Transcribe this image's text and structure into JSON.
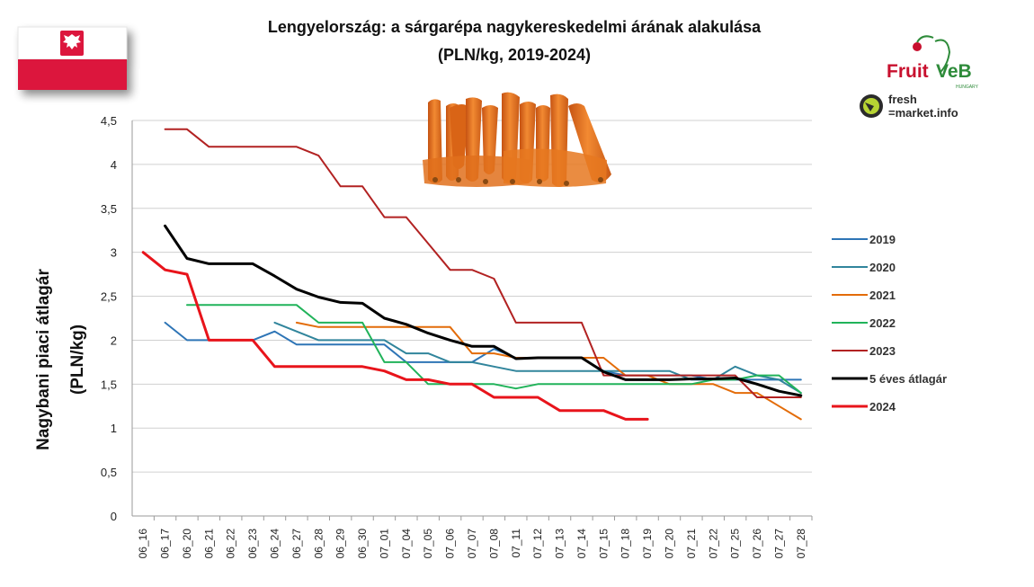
{
  "chart_data": {
    "type": "line",
    "title_line1": "Lengyelország: a sárgarépa nagykereskedelmi árának alakulása",
    "title_line2": "(PLN/kg, 2019-2024)",
    "ylabel_line1": "Nagybani piaci átlagár",
    "ylabel_line2": "(PLN/kg)",
    "ylim": [
      0,
      4.5
    ],
    "yticks": [
      "0",
      "0,5",
      "1",
      "1,5",
      "2",
      "2,5",
      "3",
      "3,5",
      "4",
      "4,5"
    ],
    "grid": true,
    "legend_position": "right",
    "x": [
      "06_16",
      "06_17",
      "06_20",
      "06_21",
      "06_22",
      "06_23",
      "06_24",
      "06_27",
      "06_28",
      "06_29",
      "06_30",
      "07_01",
      "07_04",
      "07_05",
      "07_06",
      "07_07",
      "07_08",
      "07_11",
      "07_12",
      "07_13",
      "07_14",
      "07_15",
      "07_18",
      "07_19",
      "07_20",
      "07_21",
      "07_22",
      "07_25",
      "07_26",
      "07_27",
      "07_28"
    ],
    "series": [
      {
        "name": "2019",
        "color": "#2e75b6",
        "width": 2,
        "values": [
          null,
          2.2,
          2.0,
          2.0,
          2.0,
          2.0,
          2.1,
          1.95,
          1.95,
          1.95,
          1.95,
          1.95,
          1.75,
          1.75,
          1.75,
          1.75,
          1.9,
          1.8,
          1.8,
          1.8,
          1.8,
          1.65,
          1.6,
          1.6,
          1.6,
          1.6,
          1.55,
          1.55,
          1.55,
          1.55,
          1.55
        ]
      },
      {
        "name": "2020",
        "color": "#31859c",
        "width": 2,
        "values": [
          null,
          null,
          null,
          null,
          null,
          null,
          2.2,
          2.1,
          2.0,
          2.0,
          2.0,
          2.0,
          1.85,
          1.85,
          1.75,
          1.75,
          1.7,
          1.65,
          1.65,
          1.65,
          1.65,
          1.65,
          1.65,
          1.65,
          1.65,
          1.55,
          1.55,
          1.7,
          1.6,
          1.55,
          1.4
        ]
      },
      {
        "name": "2021",
        "color": "#e36c09",
        "width": 2,
        "values": [
          null,
          null,
          null,
          null,
          null,
          null,
          null,
          2.2,
          2.15,
          2.15,
          2.15,
          2.15,
          2.15,
          2.15,
          2.15,
          1.85,
          1.85,
          1.8,
          1.8,
          1.8,
          1.8,
          1.8,
          1.6,
          1.6,
          1.5,
          1.5,
          1.5,
          1.4,
          1.4,
          1.25,
          1.1
        ]
      },
      {
        "name": "2022",
        "color": "#21b35a",
        "width": 2,
        "values": [
          null,
          null,
          2.4,
          2.4,
          2.4,
          2.4,
          2.4,
          2.4,
          2.2,
          2.2,
          2.2,
          1.75,
          1.75,
          1.5,
          1.5,
          1.5,
          1.5,
          1.45,
          1.5,
          1.5,
          1.5,
          1.5,
          1.5,
          1.5,
          1.5,
          1.5,
          1.55,
          1.55,
          1.6,
          1.6,
          1.4
        ]
      },
      {
        "name": "2023",
        "color": "#b22222",
        "width": 2,
        "values": [
          null,
          4.4,
          4.4,
          4.2,
          4.2,
          4.2,
          4.2,
          4.2,
          4.1,
          3.75,
          3.75,
          3.4,
          3.4,
          3.1,
          2.8,
          2.8,
          2.7,
          2.2,
          2.2,
          2.2,
          2.2,
          1.6,
          1.6,
          1.6,
          1.6,
          1.6,
          1.6,
          1.6,
          1.35,
          1.35,
          1.35
        ]
      },
      {
        "name": "5 éves átlagár",
        "color": "#000000",
        "width": 3,
        "values": [
          null,
          3.3,
          2.93,
          2.87,
          2.87,
          2.87,
          2.73,
          2.58,
          2.49,
          2.43,
          2.42,
          2.25,
          2.18,
          2.08,
          2.0,
          1.93,
          1.93,
          1.79,
          1.8,
          1.8,
          1.8,
          1.64,
          1.55,
          1.55,
          1.55,
          1.56,
          1.56,
          1.57,
          1.5,
          1.42,
          1.37
        ]
      },
      {
        "name": "2024",
        "color": "#e8141b",
        "width": 3,
        "values": [
          3.0,
          2.8,
          2.75,
          2.0,
          2.0,
          2.0,
          1.7,
          1.7,
          1.7,
          1.7,
          1.7,
          1.65,
          1.55,
          1.55,
          1.5,
          1.5,
          1.35,
          1.35,
          1.35,
          1.2,
          1.2,
          1.2,
          1.1,
          1.1,
          null,
          null,
          null,
          null,
          null,
          null,
          null
        ]
      }
    ]
  },
  "brand": {
    "fruitveb_part1": "Fruit",
    "fruitveb_part2": "VeB",
    "fruitveb_sub": "HUNGARY",
    "freshmarket_line1": "fresh",
    "freshmarket_line2": "=market.info"
  },
  "colors": {
    "flag_white": "#ffffff",
    "flag_red": "#dc143c",
    "carrot": "#ee7a1e",
    "grid": "#d0d0d0"
  },
  "icons": {
    "flag": "polish-flag-icon",
    "carrots": "carrots-image",
    "fruitveb": "fruitveb-logo",
    "freshmarket": "freshmarket-logo"
  }
}
